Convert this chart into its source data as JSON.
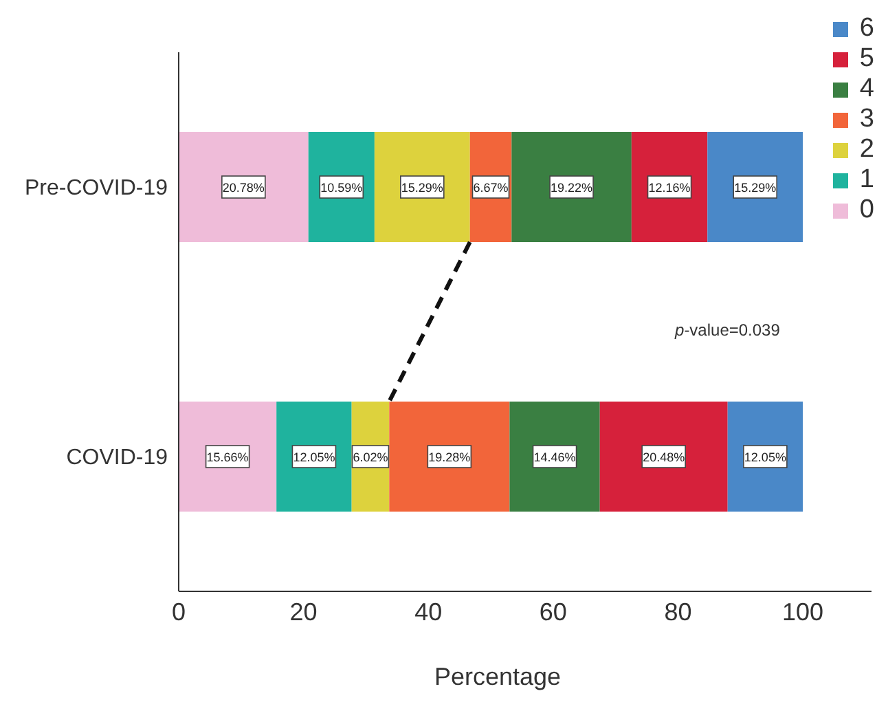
{
  "chart_data": {
    "type": "bar",
    "orientation": "horizontal",
    "stacked": true,
    "xlabel": "Percentage",
    "categories": [
      "Pre-COVID-19",
      "COVID-19"
    ],
    "series": [
      {
        "name": "0",
        "color": "#efbcd9",
        "values": [
          20.78,
          15.66
        ],
        "value_labels": [
          "20.78%",
          "15.66%"
        ]
      },
      {
        "name": "1",
        "color": "#1fb39e",
        "values": [
          10.59,
          12.05
        ],
        "value_labels": [
          "10.59%",
          "12.05%"
        ]
      },
      {
        "name": "2",
        "color": "#ddd23d",
        "values": [
          15.29,
          6.02
        ],
        "value_labels": [
          "15.29%",
          "6.02%"
        ]
      },
      {
        "name": "3",
        "color": "#f2653a",
        "values": [
          6.67,
          19.28
        ],
        "value_labels": [
          "6.67%",
          "19.28%"
        ]
      },
      {
        "name": "4",
        "color": "#3a7f42",
        "values": [
          19.22,
          14.46
        ],
        "value_labels": [
          "19.22%",
          "14.46%"
        ]
      },
      {
        "name": "5",
        "color": "#d6213b",
        "values": [
          12.16,
          20.48
        ],
        "value_labels": [
          "12.16%",
          "20.48%"
        ]
      },
      {
        "name": "6",
        "color": "#4a88c8",
        "values": [
          15.29,
          12.05
        ],
        "value_labels": [
          "15.29%",
          "12.05%"
        ]
      }
    ],
    "xlim": [
      0,
      111
    ],
    "xticks": [
      0,
      20,
      40,
      60,
      80,
      100
    ],
    "grid": false,
    "legend": "top right",
    "annotations": [
      "p-value=0.039"
    ]
  }
}
